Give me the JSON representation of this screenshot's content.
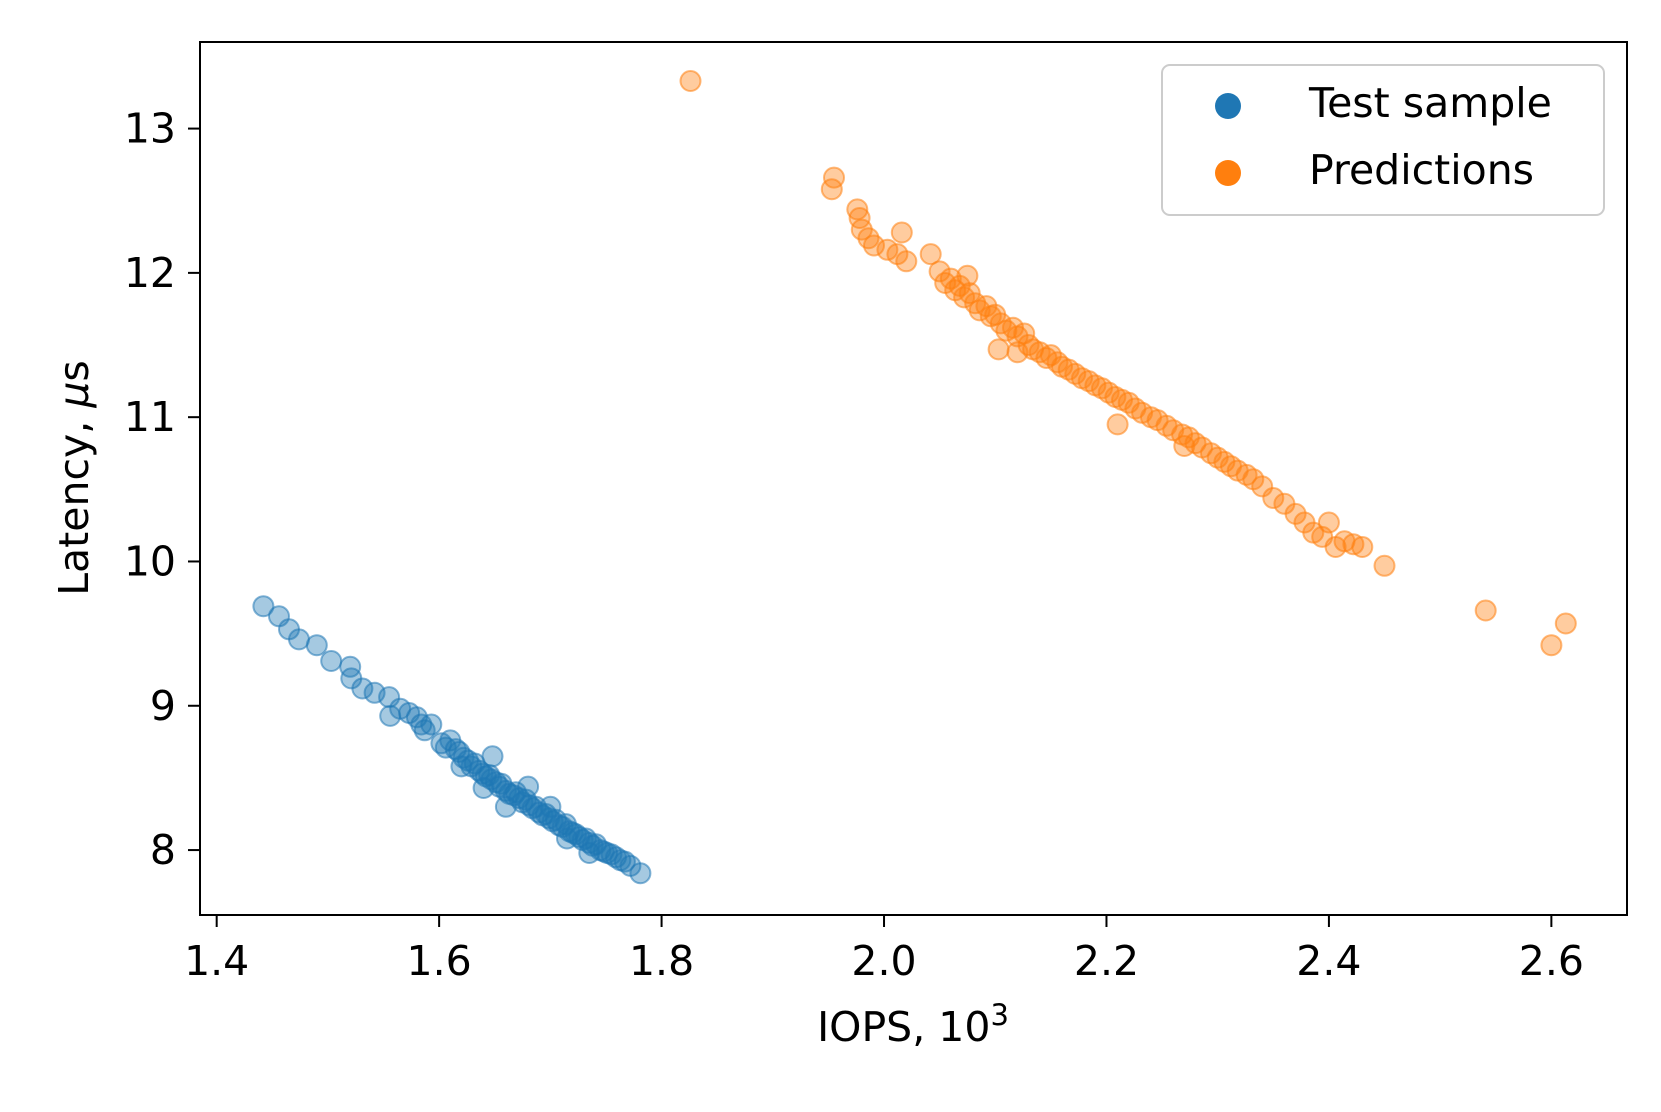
{
  "chart_data": {
    "type": "scatter",
    "title": "",
    "xlabel_main": "IOPS, 10",
    "xlabel_sup": "3",
    "ylabel_main": "Latency, ",
    "ylabel_mu": "μ",
    "ylabel_tail": "s",
    "xlim": [
      1.385,
      2.668
    ],
    "ylim": [
      7.55,
      13.6
    ],
    "xticks": [
      1.4,
      1.6,
      1.8,
      2.0,
      2.2,
      2.4,
      2.6
    ],
    "xtick_labels": [
      "1.4",
      "1.6",
      "1.8",
      "2.0",
      "2.2",
      "2.4",
      "2.6"
    ],
    "yticks": [
      8,
      9,
      10,
      11,
      12,
      13
    ],
    "ytick_labels": [
      "8",
      "9",
      "10",
      "11",
      "12",
      "13"
    ],
    "grid": false,
    "legend_position": "top-right",
    "series": [
      {
        "name": "Test sample",
        "color": "#1f77b4",
        "points": [
          [
            1.442,
            9.69
          ],
          [
            1.456,
            9.62
          ],
          [
            1.465,
            9.53
          ],
          [
            1.474,
            9.46
          ],
          [
            1.49,
            9.42
          ],
          [
            1.503,
            9.31
          ],
          [
            1.52,
            9.27
          ],
          [
            1.521,
            9.19
          ],
          [
            1.531,
            9.12
          ],
          [
            1.542,
            9.09
          ],
          [
            1.555,
            9.06
          ],
          [
            1.556,
            8.93
          ],
          [
            1.565,
            8.98
          ],
          [
            1.573,
            8.95
          ],
          [
            1.58,
            8.92
          ],
          [
            1.584,
            8.87
          ],
          [
            1.587,
            8.83
          ],
          [
            1.593,
            8.87
          ],
          [
            1.602,
            8.74
          ],
          [
            1.606,
            8.71
          ],
          [
            1.61,
            8.76
          ],
          [
            1.615,
            8.7
          ],
          [
            1.618,
            8.68
          ],
          [
            1.622,
            8.64
          ],
          [
            1.626,
            8.62
          ],
          [
            1.629,
            8.58
          ],
          [
            1.632,
            8.6
          ],
          [
            1.636,
            8.55
          ],
          [
            1.639,
            8.53
          ],
          [
            1.642,
            8.51
          ],
          [
            1.645,
            8.52
          ],
          [
            1.647,
            8.49
          ],
          [
            1.651,
            8.47
          ],
          [
            1.654,
            8.44
          ],
          [
            1.656,
            8.46
          ],
          [
            1.66,
            8.41
          ],
          [
            1.663,
            8.39
          ],
          [
            1.667,
            8.38
          ],
          [
            1.669,
            8.4
          ],
          [
            1.672,
            8.36
          ],
          [
            1.675,
            8.33
          ],
          [
            1.678,
            8.35
          ],
          [
            1.681,
            8.31
          ],
          [
            1.684,
            8.29
          ],
          [
            1.687,
            8.3
          ],
          [
            1.69,
            8.26
          ],
          [
            1.693,
            8.24
          ],
          [
            1.696,
            8.25
          ],
          [
            1.699,
            8.22
          ],
          [
            1.702,
            8.2
          ],
          [
            1.705,
            8.21
          ],
          [
            1.708,
            8.17
          ],
          [
            1.711,
            8.16
          ],
          [
            1.714,
            8.18
          ],
          [
            1.717,
            8.13
          ],
          [
            1.72,
            8.12
          ],
          [
            1.723,
            8.11
          ],
          [
            1.726,
            8.09
          ],
          [
            1.729,
            8.07
          ],
          [
            1.732,
            8.08
          ],
          [
            1.735,
            8.05
          ],
          [
            1.738,
            8.03
          ],
          [
            1.741,
            8.04
          ],
          [
            1.745,
            8.0
          ],
          [
            1.748,
            7.99
          ],
          [
            1.751,
            7.98
          ],
          [
            1.755,
            7.97
          ],
          [
            1.759,
            7.95
          ],
          [
            1.763,
            7.93
          ],
          [
            1.767,
            7.92
          ],
          [
            1.772,
            7.89
          ],
          [
            1.781,
            7.84
          ],
          [
            1.648,
            8.65
          ],
          [
            1.68,
            8.44
          ],
          [
            1.66,
            8.3
          ],
          [
            1.735,
            7.98
          ],
          [
            1.715,
            8.08
          ],
          [
            1.7,
            8.3
          ],
          [
            1.62,
            8.58
          ],
          [
            1.64,
            8.43
          ]
        ]
      },
      {
        "name": "Predictions",
        "color": "#ff7f0e",
        "points": [
          [
            1.826,
            13.33
          ],
          [
            1.955,
            12.66
          ],
          [
            1.953,
            12.58
          ],
          [
            1.976,
            12.44
          ],
          [
            1.978,
            12.38
          ],
          [
            1.98,
            12.3
          ],
          [
            1.986,
            12.24
          ],
          [
            1.991,
            12.19
          ],
          [
            2.003,
            12.16
          ],
          [
            2.016,
            12.28
          ],
          [
            2.012,
            12.13
          ],
          [
            2.02,
            12.08
          ],
          [
            2.042,
            12.13
          ],
          [
            2.05,
            12.01
          ],
          [
            2.055,
            11.93
          ],
          [
            2.06,
            11.96
          ],
          [
            2.064,
            11.88
          ],
          [
            2.068,
            11.91
          ],
          [
            2.072,
            11.83
          ],
          [
            2.077,
            11.86
          ],
          [
            2.082,
            11.79
          ],
          [
            2.086,
            11.74
          ],
          [
            2.092,
            11.77
          ],
          [
            2.096,
            11.7
          ],
          [
            2.1,
            11.71
          ],
          [
            2.103,
            11.47
          ],
          [
            2.105,
            11.65
          ],
          [
            2.11,
            11.6
          ],
          [
            2.116,
            11.62
          ],
          [
            2.12,
            11.56
          ],
          [
            2.126,
            11.58
          ],
          [
            2.13,
            11.5
          ],
          [
            2.134,
            11.47
          ],
          [
            2.14,
            11.45
          ],
          [
            2.146,
            11.41
          ],
          [
            2.15,
            11.43
          ],
          [
            2.156,
            11.38
          ],
          [
            2.16,
            11.35
          ],
          [
            2.166,
            11.33
          ],
          [
            2.172,
            11.3
          ],
          [
            2.178,
            11.27
          ],
          [
            2.184,
            11.25
          ],
          [
            2.19,
            11.22
          ],
          [
            2.196,
            11.2
          ],
          [
            2.202,
            11.17
          ],
          [
            2.208,
            11.14
          ],
          [
            2.214,
            11.12
          ],
          [
            2.22,
            11.1
          ],
          [
            2.226,
            11.06
          ],
          [
            2.232,
            11.03
          ],
          [
            2.24,
            11.0
          ],
          [
            2.246,
            10.98
          ],
          [
            2.254,
            10.94
          ],
          [
            2.26,
            10.91
          ],
          [
            2.268,
            10.88
          ],
          [
            2.274,
            10.86
          ],
          [
            2.28,
            10.82
          ],
          [
            2.286,
            10.79
          ],
          [
            2.294,
            10.75
          ],
          [
            2.3,
            10.72
          ],
          [
            2.306,
            10.69
          ],
          [
            2.312,
            10.66
          ],
          [
            2.318,
            10.63
          ],
          [
            2.326,
            10.6
          ],
          [
            2.332,
            10.57
          ],
          [
            2.34,
            10.52
          ],
          [
            2.35,
            10.44
          ],
          [
            2.36,
            10.4
          ],
          [
            2.37,
            10.33
          ],
          [
            2.378,
            10.27
          ],
          [
            2.386,
            10.2
          ],
          [
            2.394,
            10.17
          ],
          [
            2.4,
            10.27
          ],
          [
            2.406,
            10.1
          ],
          [
            2.414,
            10.14
          ],
          [
            2.422,
            10.12
          ],
          [
            2.43,
            10.1
          ],
          [
            2.45,
            9.97
          ],
          [
            2.541,
            9.66
          ],
          [
            2.6,
            9.42
          ],
          [
            2.613,
            9.57
          ],
          [
            2.075,
            11.98
          ],
          [
            2.12,
            11.45
          ],
          [
            2.21,
            10.95
          ],
          [
            2.27,
            10.8
          ]
        ]
      }
    ]
  }
}
